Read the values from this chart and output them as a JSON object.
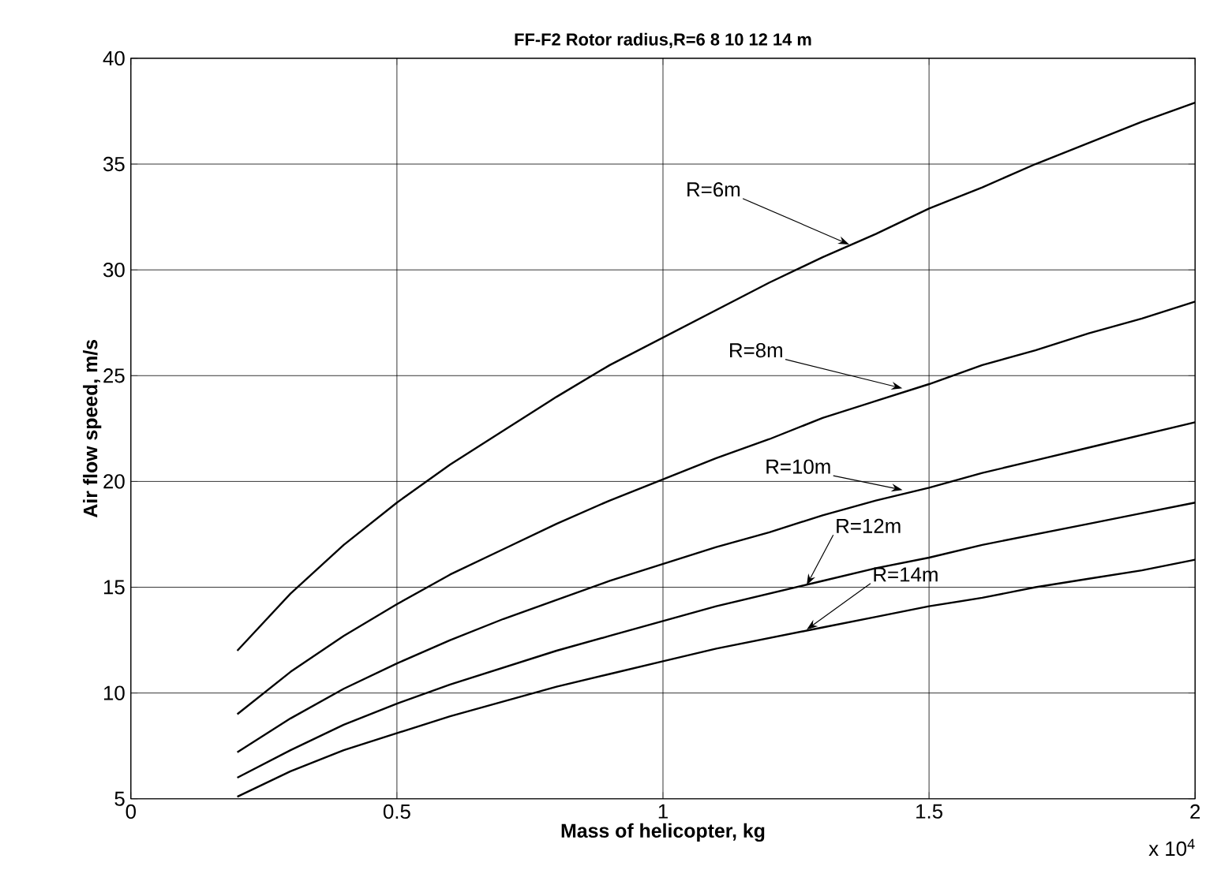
{
  "chart_data": {
    "type": "line",
    "title": "FF-F2 Rotor radius,R=6   8  10  12  14 m",
    "xlabel": "Mass of helicopter, kg",
    "ylabel": "Air flow speed, m/s",
    "x": [
      0.2,
      0.3,
      0.4,
      0.5,
      0.6,
      0.7,
      0.8,
      0.9,
      1.0,
      1.1,
      1.2,
      1.3,
      1.4,
      1.5,
      1.6,
      1.7,
      1.8,
      1.9,
      2.0
    ],
    "series": [
      {
        "color": "#000000",
        "values": [
          12,
          14.7,
          17.0,
          19.0,
          20.8,
          22.4,
          24.0,
          25.5,
          26.8,
          28.1,
          29.4,
          30.6,
          31.7,
          32.9,
          33.9,
          35.0,
          36.0,
          37.0,
          37.9
        ]
      },
      {
        "color": "#000000",
        "values": [
          9,
          11.0,
          12.7,
          14.2,
          15.6,
          16.8,
          18.0,
          19.1,
          20.1,
          21.1,
          22.0,
          23.0,
          23.8,
          24.6,
          25.5,
          26.2,
          27.0,
          27.7,
          28.5
        ]
      },
      {
        "color": "#000000",
        "values": [
          7.2,
          8.8,
          10.2,
          11.4,
          12.5,
          13.5,
          14.4,
          15.3,
          16.1,
          16.9,
          17.6,
          18.4,
          19.1,
          19.7,
          20.4,
          21.0,
          21.6,
          22.2,
          22.8
        ]
      },
      {
        "color": "#000000",
        "values": [
          6,
          7.3,
          8.5,
          9.5,
          10.4,
          11.2,
          12,
          12.7,
          13.4,
          14.1,
          14.7,
          15.3,
          15.9,
          16.4,
          17.0,
          17.5,
          18,
          18.5,
          19.0
        ]
      },
      {
        "color": "#000000",
        "values": [
          5.1,
          6.3,
          7.3,
          8.1,
          8.9,
          9.6,
          10.3,
          10.9,
          11.5,
          12.1,
          12.6,
          13.1,
          13.6,
          14.1,
          14.5,
          15.0,
          15.4,
          15.8,
          16.3
        ]
      }
    ],
    "xlim": [
      0,
      2
    ],
    "ylim": [
      5,
      40
    ],
    "xticks": [
      0,
      0.5,
      1,
      1.5,
      2
    ],
    "yticks": [
      5,
      10,
      15,
      20,
      25,
      30,
      35,
      40
    ],
    "grid": true,
    "line_style": "solid",
    "annotations": [
      {
        "text": "R=6m",
        "x": 1.35,
        "y": 31.2
      },
      {
        "text": "R=8m",
        "x": 1.45,
        "y": 24.4
      },
      {
        "text": "R=10m",
        "x": 1.45,
        "y": 19.6
      },
      {
        "text": "R=12m",
        "x": 1.27,
        "y": 15.1
      },
      {
        "text": "R=14m",
        "x": 1.27,
        "y": 13.0
      },
      "x 10$^{4}$"
    ]
  }
}
